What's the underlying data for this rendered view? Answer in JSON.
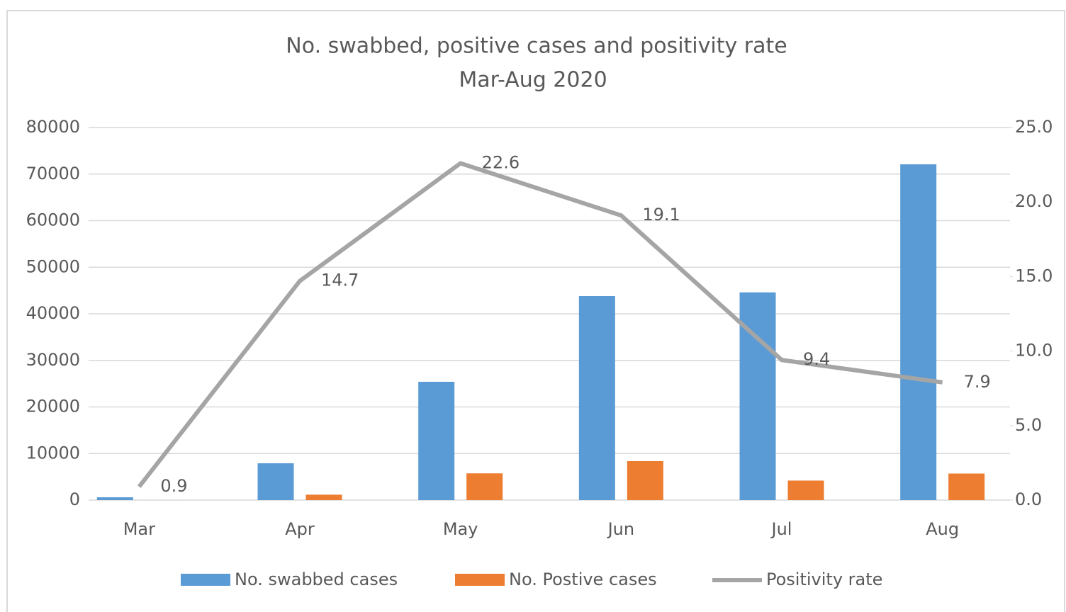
{
  "chart_data": {
    "type": "bar-line",
    "title": "No. swabbed, positive cases and positivity rate",
    "subtitle": "Mar-Aug 2020",
    "categories": [
      "Mar",
      "Apr",
      "May",
      "Jun",
      "Jul",
      "Aug"
    ],
    "series": [
      {
        "name": "No. swabbed cases",
        "color": "#5b9bd5",
        "type": "bar",
        "values": [
          600,
          7900,
          25400,
          43800,
          44600,
          72100
        ]
      },
      {
        "name": "No. Postive cases",
        "color": "#ed7d31",
        "type": "bar",
        "values": [
          5,
          1160,
          5740,
          8370,
          4190,
          5700
        ]
      },
      {
        "name": "Positivity rate",
        "color": "#a5a5a5",
        "type": "line",
        "axis": "y2",
        "values": [
          0.9,
          14.7,
          22.6,
          19.1,
          9.4,
          7.9
        ]
      }
    ],
    "ylim": [
      0,
      80000
    ],
    "yticks": [
      0,
      10000,
      20000,
      30000,
      40000,
      50000,
      60000,
      70000,
      80000
    ],
    "y2lim": [
      0,
      25
    ],
    "y2ticks": [
      {
        "value": 0,
        "label": "0.0"
      },
      {
        "value": 5,
        "label": "5.0"
      },
      {
        "value": 10,
        "label": "10.0"
      },
      {
        "value": 15,
        "label": "15.0"
      },
      {
        "value": 20,
        "label": "20.0"
      },
      {
        "value": 25,
        "label": "25.0"
      }
    ],
    "grid": true,
    "legend": "bottom"
  }
}
